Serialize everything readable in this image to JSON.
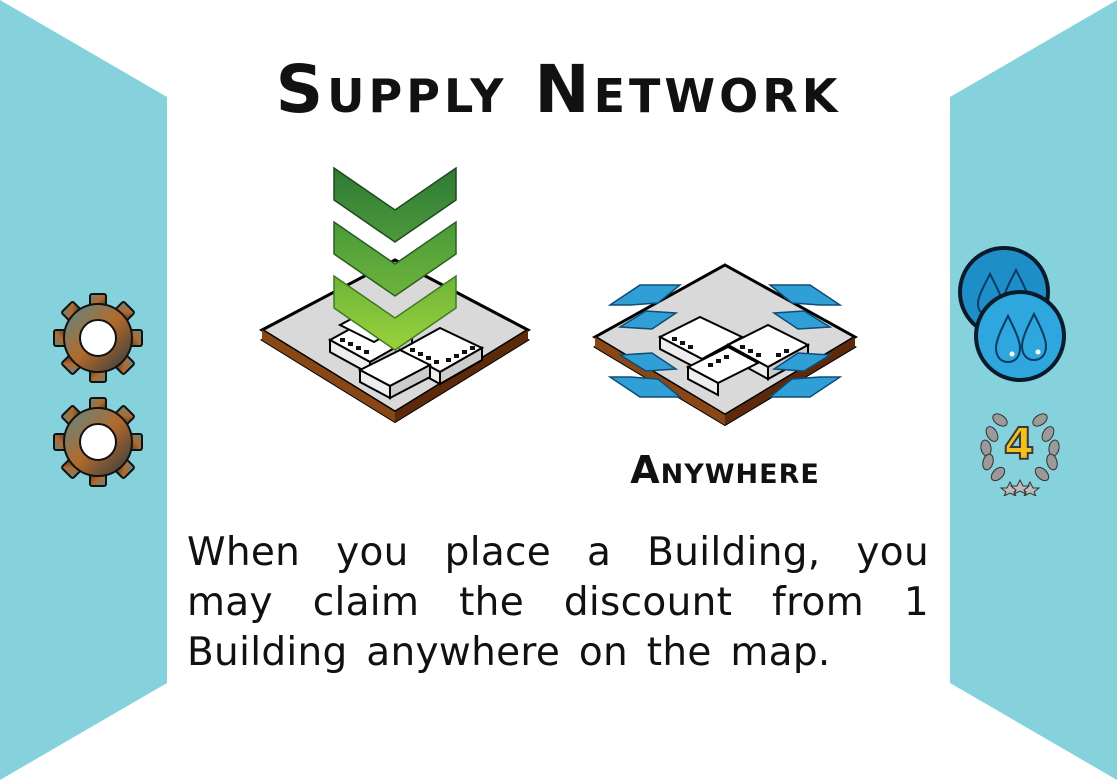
{
  "card": {
    "title": "Supply Network",
    "placement_label": "Anywhere",
    "rules_text": "When you place a Building, you may claim the discount from 1 Building anywhere on the map.",
    "victory_points": "4"
  },
  "icons": {
    "left_side": [
      "gear-icon",
      "gear-icon"
    ],
    "right_side": [
      "water-drop-token-icon",
      "water-drop-token-icon",
      "victory-points-laurel-icon"
    ],
    "center": [
      "building-tile-with-arrows-icon",
      "building-tile-anywhere-icon"
    ]
  },
  "colors": {
    "side_panels": "#86d2dc",
    "arrow_green": "#5fa83a",
    "anywhere_blue": "#2f9fd6",
    "vp_number": "#f2c21a",
    "gear_bronze": "#b26a2c"
  }
}
